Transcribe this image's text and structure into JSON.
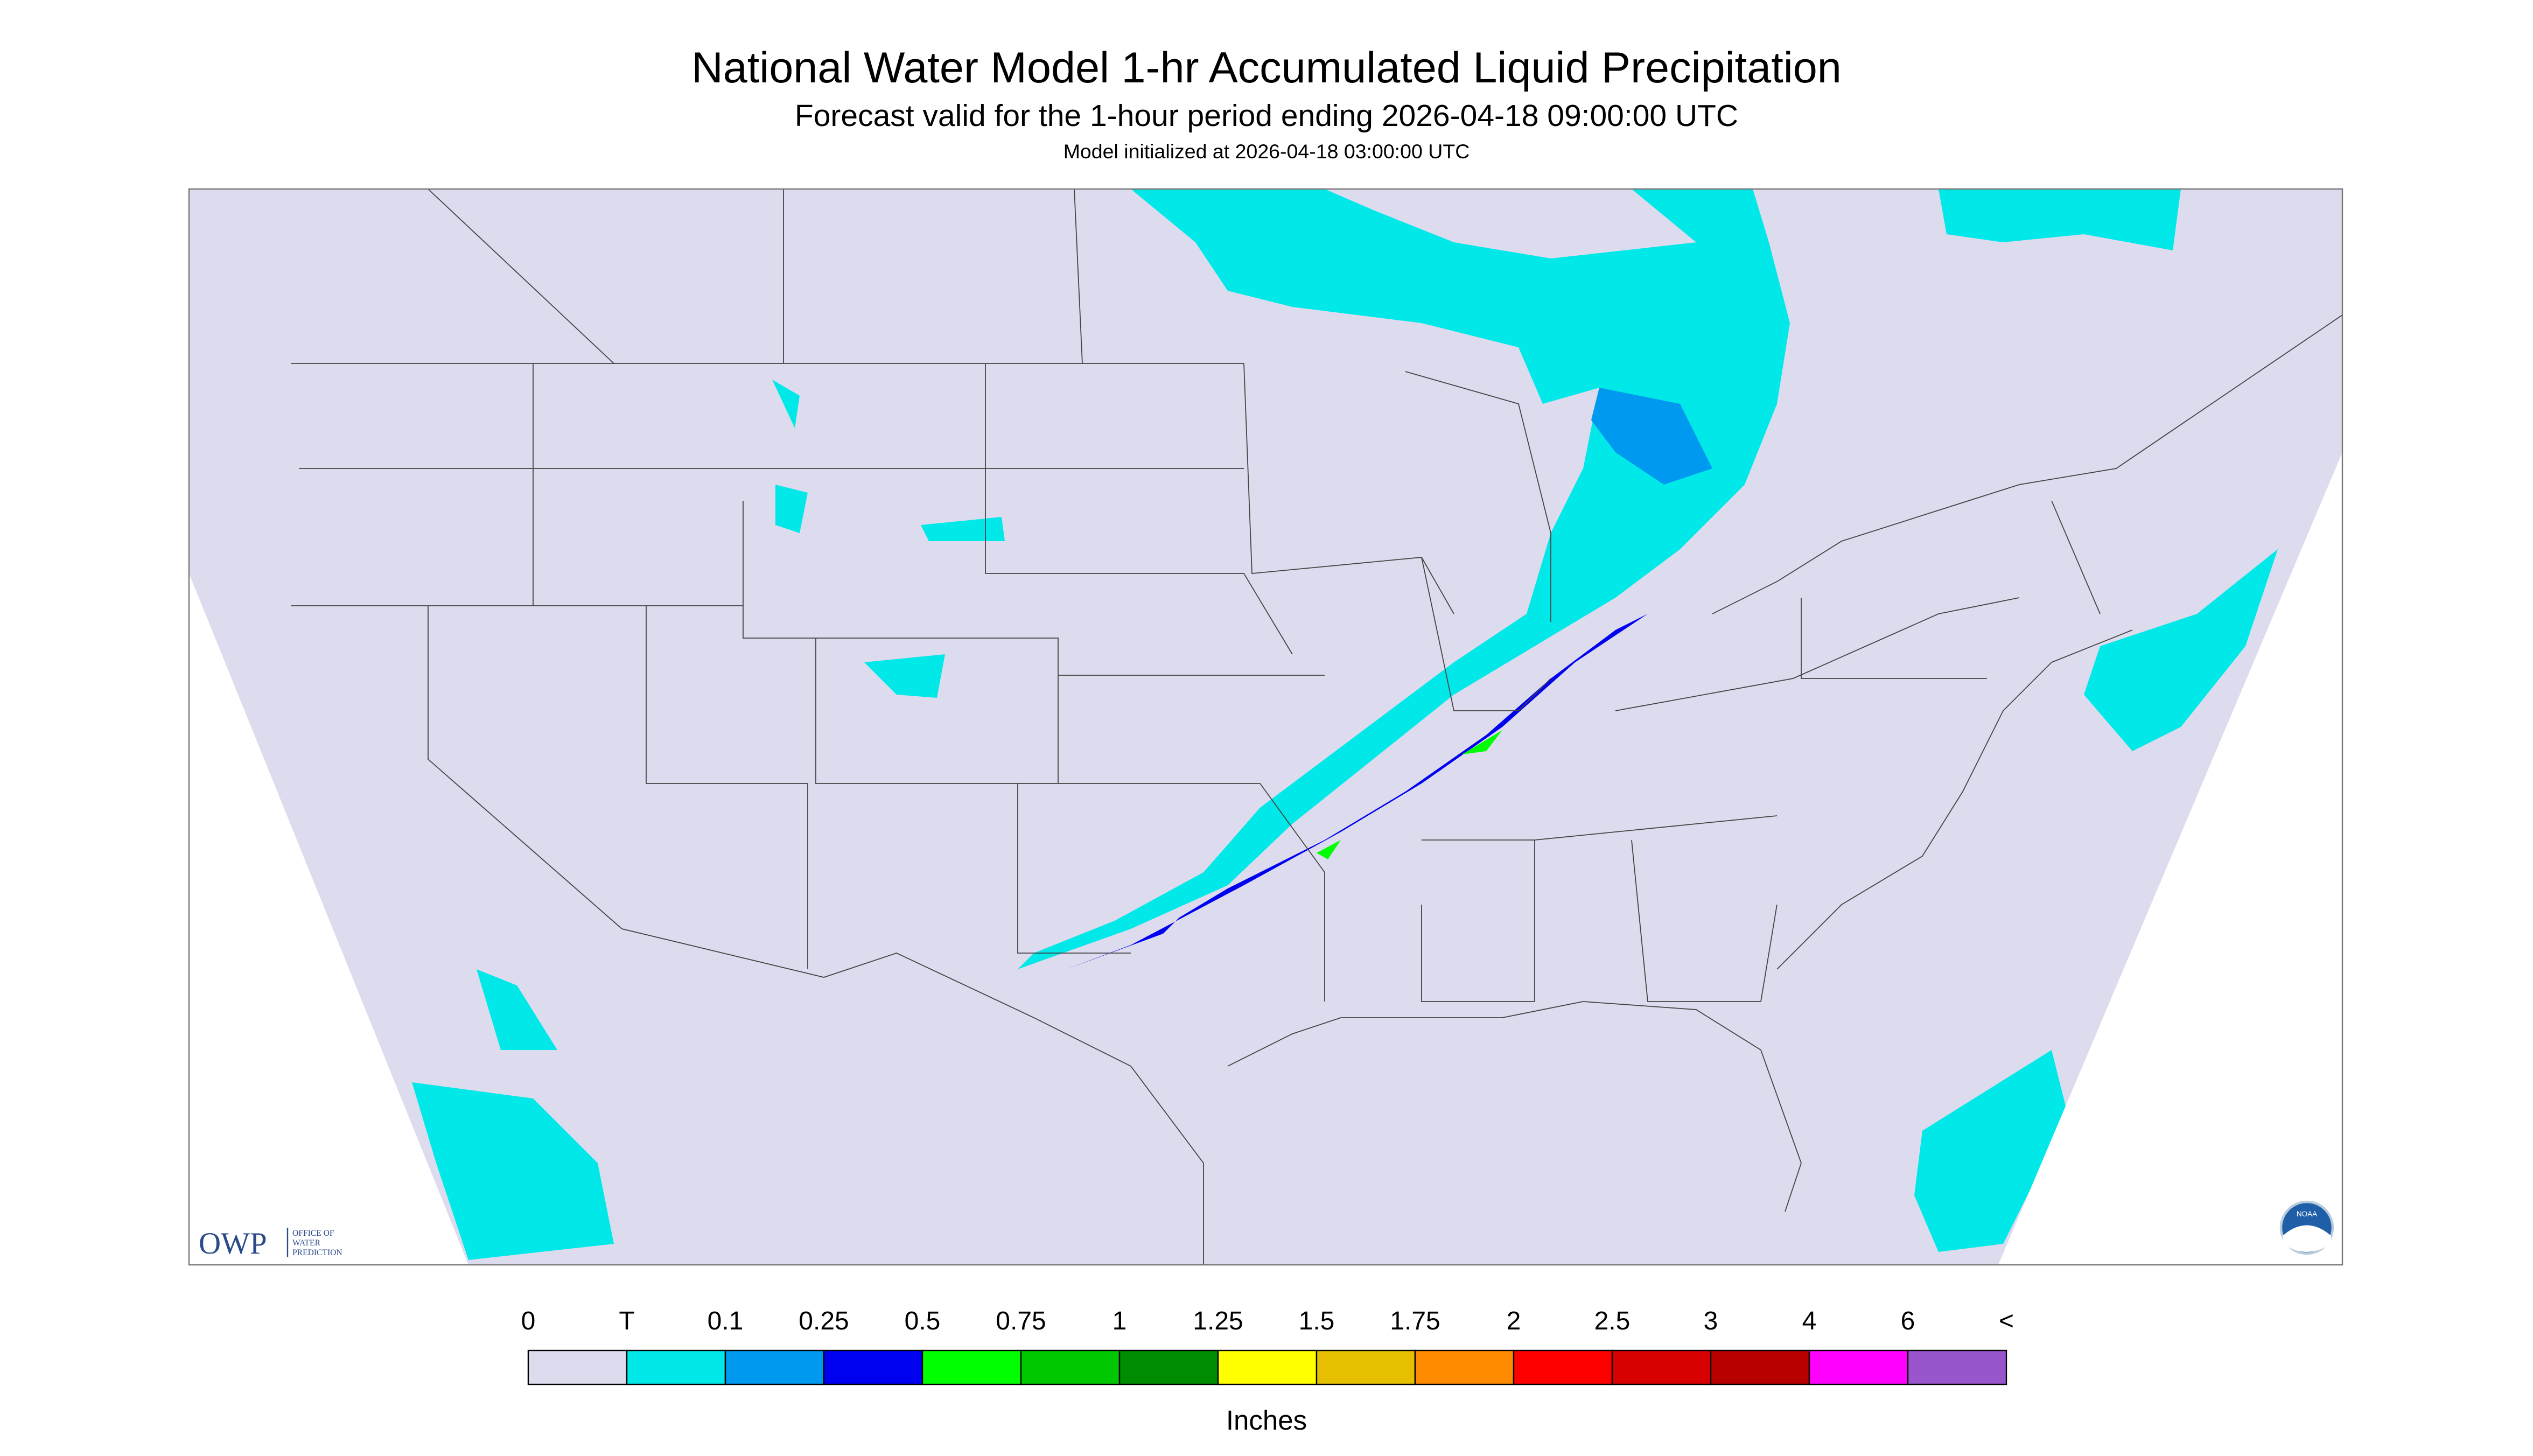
{
  "header": {
    "title": "National Water Model 1-hr Accumulated Liquid Precipitation",
    "subtitle": "Forecast valid for the 1-hour period ending 2026-04-18 09:00:00 UTC",
    "note": "Model initialized at 2026-04-18 03:00:00 UTC"
  },
  "legend": {
    "labels": [
      "0",
      "T",
      "0.1",
      "0.25",
      "0.5",
      "0.75",
      "1",
      "1.25",
      "1.5",
      "1.75",
      "2",
      "2.5",
      "3",
      "4",
      "6",
      "<"
    ],
    "colors": [
      "#dcdcee",
      "#00e8e8",
      "#0099f0",
      "#0000f0",
      "#00ff00",
      "#00c800",
      "#008c00",
      "#ffff00",
      "#e6c000",
      "#ff8c00",
      "#ff0000",
      "#d80000",
      "#b80000",
      "#ff00ff",
      "#9955cc"
    ],
    "unit": "Inches"
  },
  "logo": {
    "abbr": "OWP",
    "lines": [
      "OFFICE OF",
      "WATER",
      "PREDICTION"
    ]
  },
  "badge": "NOAA"
}
